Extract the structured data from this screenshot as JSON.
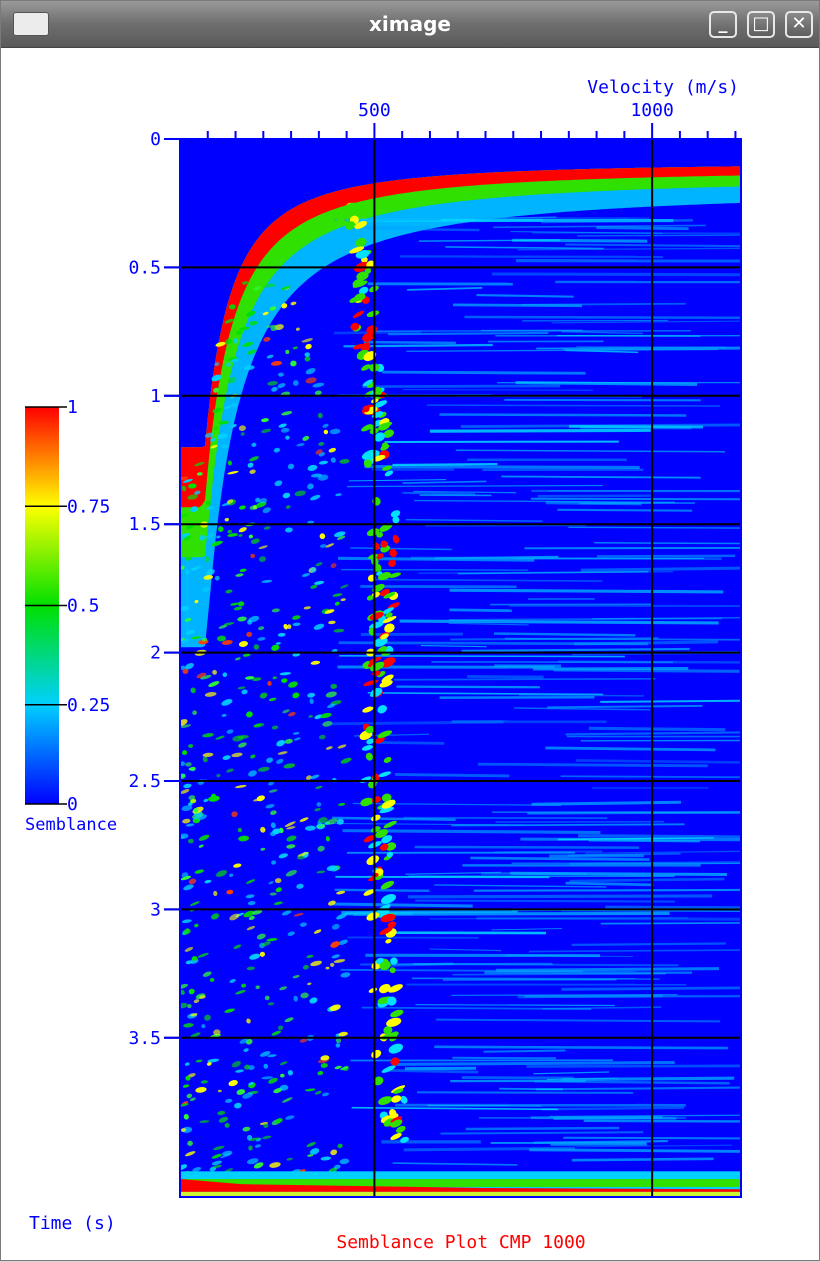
{
  "window": {
    "title": "ximage",
    "minimize_glyph": "_",
    "maximize_glyph": "□",
    "close_glyph": "✕",
    "app_icon": "window-icon"
  },
  "chart_data": {
    "type": "heatmap",
    "title": "Semblance Plot CMP 1000",
    "xlabel": "Velocity (m/s)",
    "ylabel": "Time (s)",
    "xlim": [
      150,
      1160
    ],
    "ylim": [
      0,
      4.12
    ],
    "x_ticks": [
      {
        "value": 500,
        "label": "500"
      },
      {
        "value": 1000,
        "label": "1000"
      }
    ],
    "x_minor_ticks": [
      200,
      250,
      300,
      350,
      400,
      450,
      550,
      600,
      650,
      700,
      750,
      800,
      850,
      900,
      950,
      1050,
      1100,
      1150
    ],
    "y_ticks": [
      {
        "value": 0,
        "label": "0"
      },
      {
        "value": 0.5,
        "label": "0.5"
      },
      {
        "value": 1,
        "label": "1"
      },
      {
        "value": 1.5,
        "label": "1.5"
      },
      {
        "value": 2,
        "label": "2"
      },
      {
        "value": 2.5,
        "label": "2.5"
      },
      {
        "value": 3,
        "label": "3"
      },
      {
        "value": 3.5,
        "label": "3.5"
      }
    ],
    "grid_x": [
      500,
      1000
    ],
    "grid_y": [
      0.5,
      1,
      1.5,
      2,
      2.5,
      3,
      3.5
    ],
    "colorbar": {
      "label": "Semblance",
      "ticks": [
        {
          "value": 1,
          "label": "1"
        },
        {
          "value": 0.75,
          "label": "0.75"
        },
        {
          "value": 0.5,
          "label": "0.5"
        },
        {
          "value": 0.25,
          "label": "0.25"
        },
        {
          "value": 0,
          "label": "0"
        }
      ],
      "colors": [
        "#0000ff",
        "#00d0ff",
        "#00e000",
        "#ffff00",
        "#ff0000"
      ]
    },
    "velocity_pick_trend": [
      {
        "t": 0.25,
        "v": 440
      },
      {
        "t": 0.5,
        "v": 480
      },
      {
        "t": 0.8,
        "v": 485
      },
      {
        "t": 1.0,
        "v": 500
      },
      {
        "t": 1.5,
        "v": 520
      },
      {
        "t": 2.0,
        "v": 510
      },
      {
        "t": 2.5,
        "v": 505
      },
      {
        "t": 3.0,
        "v": 510
      },
      {
        "t": 3.5,
        "v": 520
      },
      {
        "t": 3.9,
        "v": 540
      }
    ],
    "background_color": "#0000ff",
    "grid_color": "#000000",
    "axis_color": "#0000ff",
    "title_color": "#ff0000"
  }
}
